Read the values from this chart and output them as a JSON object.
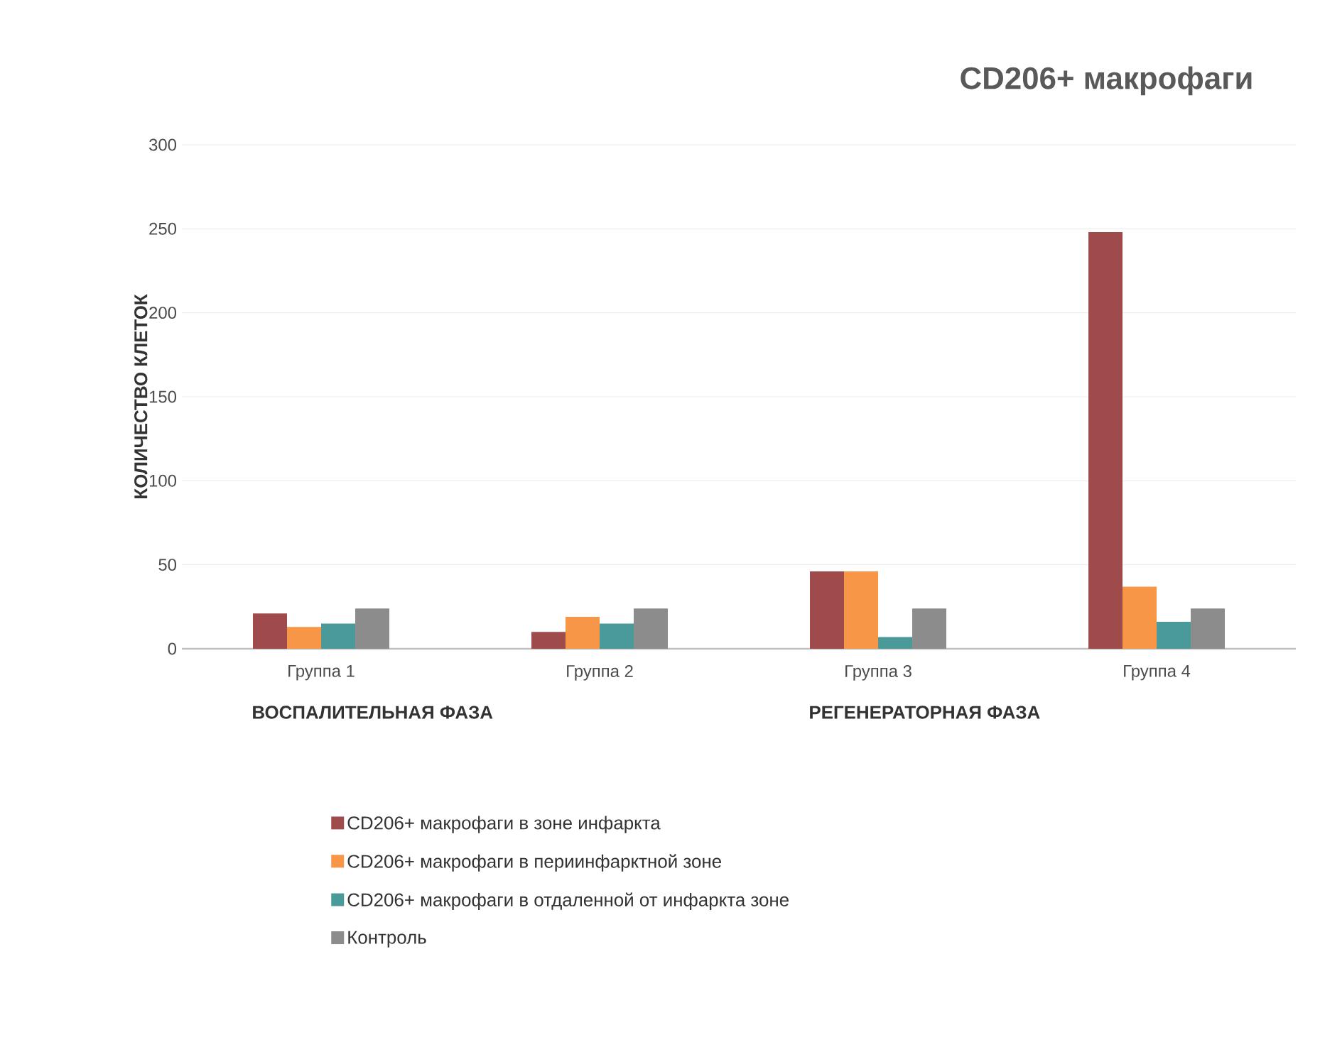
{
  "chart_data": {
    "type": "bar",
    "title": "CD206+ макрофаги",
    "ylabel": "КОЛИЧЕСТВО КЛЕТОК",
    "categories": [
      "Группа 1",
      "Группа 2",
      "Группа 3",
      "Группа 4"
    ],
    "series": [
      {
        "name": "CD206+ макрофаги в зоне инфаркта",
        "color": "#a04b4b",
        "values": [
          21,
          10,
          46,
          248
        ]
      },
      {
        "name": "CD206+ макрофаги в периинфарктной зоне",
        "color": "#f79646",
        "values": [
          13,
          19,
          46,
          37
        ]
      },
      {
        "name": "CD206+ макрофаги в отдаленной от инфаркта зоне",
        "color": "#4a9a9a",
        "values": [
          15,
          15,
          7,
          16
        ]
      },
      {
        "name": "Контроль",
        "color": "#8c8c8c",
        "values": [
          24,
          24,
          24,
          24
        ]
      }
    ],
    "ylim": [
      0,
      300
    ],
    "yticks": [
      0,
      50,
      100,
      150,
      200,
      250,
      300
    ],
    "grid": "y",
    "legend": "bottom",
    "annotations": [
      "ВОСПАЛИТЕЛЬНАЯ ФАЗА",
      "РЕГЕНЕРАТОРНАЯ ФАЗА"
    ]
  }
}
